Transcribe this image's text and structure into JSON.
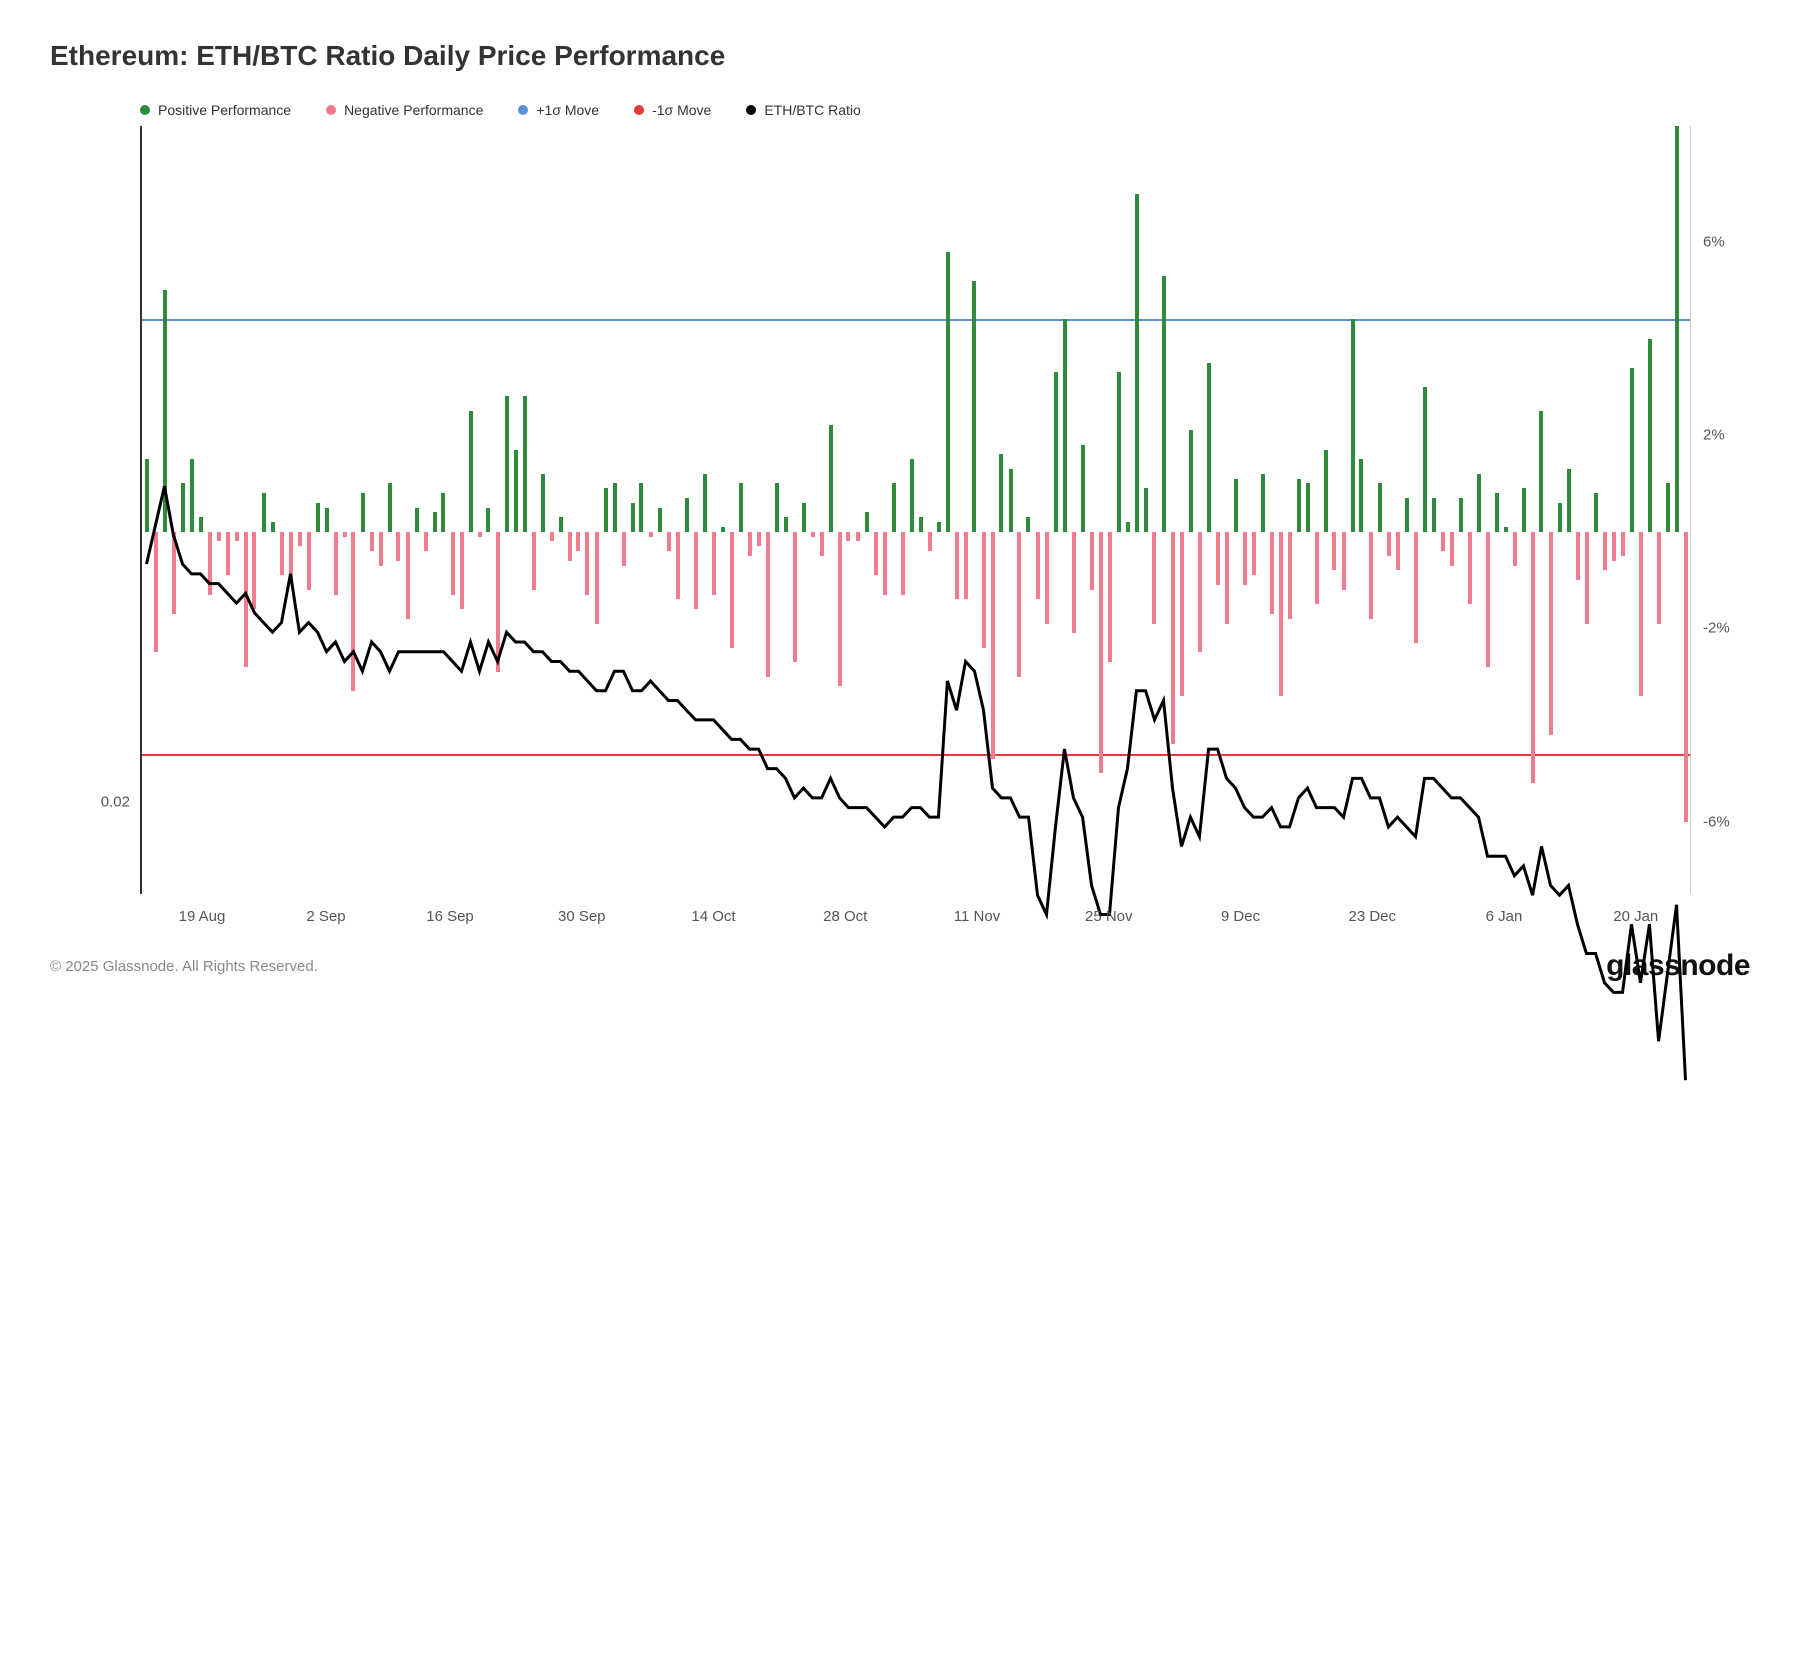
{
  "title": "Ethereum: ETH/BTC Ratio Daily Price Performance",
  "copyright": "© 2025 Glassnode. All Rights Reserved.",
  "brand": "glassnode",
  "colors": {
    "positive": "#2e8b3c",
    "negative": "#f07b8c",
    "plus_sigma": "#5b8fd6",
    "minus_sigma": "#e63939",
    "ratio_line": "#000000",
    "axis": "#333333",
    "background": "#ffffff"
  },
  "legend": [
    {
      "label": "Positive Performance",
      "color": "#2e8b3c"
    },
    {
      "label": "Negative Performance",
      "color": "#f07b8c"
    },
    {
      "label": "+1σ Move",
      "color": "#5b8fd6"
    },
    {
      "label": "-1σ Move",
      "color": "#e63939"
    },
    {
      "label": "ETH/BTC Ratio",
      "color": "#000000"
    }
  ],
  "chart": {
    "type": "bar_and_line_dual_axis",
    "right_axis": {
      "min": -7.5,
      "max": 8.4,
      "ticks": [
        6,
        2,
        -2,
        -6
      ],
      "tick_labels": [
        "6%",
        "2%",
        "-2%",
        "-6%"
      ]
    },
    "left_axis": {
      "label_value": "0.02",
      "label_y_approx_right_axis": -5.6
    },
    "sigma": {
      "plus": 4.4,
      "minus": -4.6
    },
    "x_ticks": [
      {
        "pos": 0.04,
        "label": "19 Aug"
      },
      {
        "pos": 0.12,
        "label": "2 Sep"
      },
      {
        "pos": 0.2,
        "label": "16 Sep"
      },
      {
        "pos": 0.285,
        "label": "30 Sep"
      },
      {
        "pos": 0.37,
        "label": "14 Oct"
      },
      {
        "pos": 0.455,
        "label": "28 Oct"
      },
      {
        "pos": 0.54,
        "label": "11 Nov"
      },
      {
        "pos": 0.625,
        "label": "25 Nov"
      },
      {
        "pos": 0.71,
        "label": "9 Dec"
      },
      {
        "pos": 0.795,
        "label": "23 Dec"
      },
      {
        "pos": 0.88,
        "label": "6 Jan"
      },
      {
        "pos": 0.965,
        "label": "20 Jan"
      }
    ],
    "bars": [
      1.5,
      -2.5,
      5.0,
      -1.7,
      1.0,
      1.5,
      0.3,
      -1.3,
      -0.2,
      -0.9,
      -0.2,
      -2.8,
      -1.6,
      0.8,
      0.2,
      -0.9,
      -1.0,
      -0.3,
      -1.2,
      0.6,
      0.5,
      -1.3,
      -0.1,
      -3.3,
      0.8,
      -0.4,
      -0.7,
      1.0,
      -0.6,
      -1.8,
      0.5,
      -0.4,
      0.4,
      0.8,
      -1.3,
      -1.6,
      2.5,
      -0.1,
      0.5,
      -2.9,
      2.8,
      1.7,
      2.8,
      -1.2,
      1.2,
      -0.2,
      0.3,
      -0.6,
      -0.4,
      -1.3,
      -1.9,
      0.9,
      1.0,
      -0.7,
      0.6,
      1.0,
      -0.1,
      0.5,
      -0.4,
      -1.4,
      0.7,
      -1.6,
      1.2,
      -1.3,
      0.1,
      -2.4,
      1.0,
      -0.5,
      -0.3,
      -3.0,
      1.0,
      0.3,
      -2.7,
      0.6,
      -0.1,
      -0.5,
      2.2,
      -3.2,
      -0.2,
      -0.2,
      0.4,
      -0.9,
      -1.3,
      1.0,
      -1.3,
      1.5,
      0.3,
      -0.4,
      0.2,
      5.8,
      -1.4,
      -1.4,
      5.2,
      -2.4,
      -4.7,
      1.6,
      1.3,
      -3.0,
      0.3,
      -1.4,
      -1.9,
      3.3,
      4.4,
      -2.1,
      1.8,
      -1.2,
      -5.0,
      -2.7,
      3.3,
      0.2,
      7.0,
      0.9,
      -1.9,
      5.3,
      -4.4,
      -3.4,
      2.1,
      -2.5,
      3.5,
      -1.1,
      -1.9,
      1.1,
      -1.1,
      -0.9,
      1.2,
      -1.7,
      -3.4,
      -1.8,
      1.1,
      1.0,
      -1.5,
      1.7,
      -0.8,
      -1.2,
      4.4,
      1.5,
      -1.8,
      1.0,
      -0.5,
      -0.8,
      0.7,
      -2.3,
      3.0,
      0.7,
      -0.4,
      -0.7,
      0.7,
      -1.5,
      1.2,
      -2.8,
      0.8,
      0.1,
      -0.7,
      0.9,
      -5.2,
      2.5,
      -4.2,
      0.6,
      1.3,
      -1.0,
      -1.9,
      0.8,
      -0.8,
      -0.6,
      -0.5,
      3.4,
      -3.4,
      4.0,
      -1.9,
      1.0,
      8.4,
      -6.0
    ],
    "ratio_values": [
      3.9,
      4.3,
      4.7,
      4.2,
      3.9,
      3.8,
      3.8,
      3.7,
      3.7,
      3.6,
      3.5,
      3.6,
      3.4,
      3.3,
      3.2,
      3.3,
      3.8,
      3.2,
      3.3,
      3.2,
      3.0,
      3.1,
      2.9,
      3.0,
      2.8,
      3.1,
      3.0,
      2.8,
      3.0,
      3.0,
      3.0,
      3.0,
      3.0,
      3.0,
      2.9,
      2.8,
      3.1,
      2.8,
      3.1,
      2.9,
      3.2,
      3.1,
      3.1,
      3.0,
      3.0,
      2.9,
      2.9,
      2.8,
      2.8,
      2.7,
      2.6,
      2.6,
      2.8,
      2.8,
      2.6,
      2.6,
      2.7,
      2.6,
      2.5,
      2.5,
      2.4,
      2.3,
      2.3,
      2.3,
      2.2,
      2.1,
      2.1,
      2.0,
      2.0,
      1.8,
      1.8,
      1.7,
      1.5,
      1.6,
      1.5,
      1.5,
      1.7,
      1.5,
      1.4,
      1.4,
      1.4,
      1.3,
      1.2,
      1.3,
      1.3,
      1.4,
      1.4,
      1.3,
      1.3,
      2.7,
      2.4,
      2.9,
      2.8,
      2.4,
      1.6,
      1.5,
      1.5,
      1.3,
      1.3,
      0.5,
      0.3,
      1.2,
      2.0,
      1.5,
      1.3,
      0.6,
      0.3,
      0.3,
      1.4,
      1.8,
      2.6,
      2.6,
      2.3,
      2.5,
      1.6,
      1.0,
      1.3,
      1.1,
      2.0,
      2.0,
      1.7,
      1.6,
      1.4,
      1.3,
      1.3,
      1.4,
      1.2,
      1.2,
      1.5,
      1.6,
      1.4,
      1.4,
      1.4,
      1.3,
      1.7,
      1.7,
      1.5,
      1.5,
      1.2,
      1.3,
      1.2,
      1.1,
      1.7,
      1.7,
      1.6,
      1.5,
      1.5,
      1.4,
      1.3,
      0.9,
      0.9,
      0.9,
      0.7,
      0.8,
      0.5,
      1.0,
      0.6,
      0.5,
      0.6,
      0.2,
      -0.1,
      -0.1,
      -0.4,
      -0.5,
      -0.5,
      0.2,
      -0.4,
      0.2,
      -1.0,
      -0.3,
      0.4,
      -1.4
    ]
  }
}
